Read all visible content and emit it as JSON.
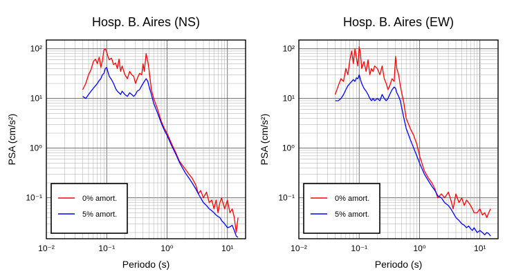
{
  "chart_data": [
    {
      "type": "line",
      "title": "Hosp. B. Aires (NS)",
      "xlabel": "Periodo (s)",
      "ylabel": "PSA (cm/s²)",
      "xscale": "log",
      "yscale": "log",
      "xlim": [
        0.01,
        20
      ],
      "ylim": [
        0.015,
        150
      ],
      "grid": true,
      "legend_placement": "lower-left",
      "xticks": [
        {
          "value": 0.01,
          "label": "10⁻²"
        },
        {
          "value": 0.1,
          "label": "10⁻¹"
        },
        {
          "value": 1,
          "label": "10⁰"
        },
        {
          "value": 10,
          "label": "10¹"
        }
      ],
      "yticks": [
        {
          "value": 0.1,
          "label": "10⁻¹"
        },
        {
          "value": 1,
          "label": "10⁰"
        },
        {
          "value": 10,
          "label": "10¹"
        },
        {
          "value": 100,
          "label": "10²"
        }
      ],
      "series": [
        {
          "name": "0% amort.",
          "color": "#ff0000",
          "x": [
            0.04,
            0.045,
            0.05,
            0.055,
            0.06,
            0.065,
            0.07,
            0.075,
            0.08,
            0.085,
            0.09,
            0.095,
            0.1,
            0.105,
            0.11,
            0.12,
            0.13,
            0.14,
            0.15,
            0.16,
            0.17,
            0.18,
            0.2,
            0.22,
            0.24,
            0.26,
            0.28,
            0.3,
            0.32,
            0.35,
            0.38,
            0.4,
            0.42,
            0.45,
            0.48,
            0.5,
            0.55,
            0.6,
            0.7,
            0.8,
            0.9,
            1.0,
            1.2,
            1.4,
            1.6,
            1.8,
            2.0,
            2.3,
            2.6,
            3.0,
            3.3,
            3.6,
            4.0,
            4.5,
            5.0,
            5.5,
            6.0,
            6.5,
            7.0,
            7.5,
            8.0,
            9.0,
            10.0,
            11.0,
            12.0,
            13.0,
            14.0,
            15.0
          ],
          "y": [
            15,
            20,
            30,
            38,
            55,
            62,
            50,
            68,
            42,
            58,
            95,
            100,
            85,
            70,
            60,
            65,
            48,
            52,
            40,
            62,
            35,
            45,
            30,
            25,
            35,
            30,
            28,
            20,
            25,
            32,
            30,
            50,
            35,
            80,
            55,
            40,
            15,
            10,
            6,
            3.5,
            2.5,
            2,
            1.2,
            0.8,
            0.55,
            0.45,
            0.38,
            0.3,
            0.25,
            0.18,
            0.12,
            0.14,
            0.1,
            0.13,
            0.08,
            0.09,
            0.06,
            0.09,
            0.05,
            0.08,
            0.1,
            0.06,
            0.09,
            0.05,
            0.06,
            0.04,
            0.02,
            0.04
          ]
        },
        {
          "name": "5% amort.",
          "color": "#0000ff",
          "x": [
            0.04,
            0.045,
            0.05,
            0.055,
            0.06,
            0.065,
            0.07,
            0.075,
            0.08,
            0.085,
            0.09,
            0.095,
            0.1,
            0.105,
            0.11,
            0.12,
            0.13,
            0.14,
            0.15,
            0.16,
            0.17,
            0.18,
            0.2,
            0.22,
            0.24,
            0.26,
            0.28,
            0.3,
            0.32,
            0.35,
            0.38,
            0.4,
            0.42,
            0.45,
            0.48,
            0.5,
            0.55,
            0.6,
            0.7,
            0.8,
            0.9,
            1.0,
            1.2,
            1.4,
            1.6,
            1.8,
            2.0,
            2.3,
            2.6,
            3.0,
            3.3,
            3.6,
            4.0,
            4.5,
            5.0,
            5.5,
            6.0,
            6.5,
            7.0,
            7.5,
            8.0,
            9.0,
            10.0,
            11.0,
            12.0,
            13.0,
            14.0,
            15.0
          ],
          "y": [
            11,
            10,
            12,
            14,
            16,
            18,
            20,
            23,
            25,
            30,
            32,
            40,
            42,
            34,
            28,
            24,
            20,
            16,
            14,
            13,
            12,
            14,
            12,
            11,
            13,
            12,
            11,
            12,
            14,
            15,
            18,
            20,
            22,
            25,
            22,
            18,
            12,
            8,
            5,
            3.2,
            2.3,
            1.8,
            1.1,
            0.75,
            0.52,
            0.4,
            0.32,
            0.25,
            0.2,
            0.15,
            0.12,
            0.1,
            0.08,
            0.07,
            0.06,
            0.055,
            0.05,
            0.045,
            0.042,
            0.04,
            0.035,
            0.03,
            0.025,
            0.026,
            0.028,
            0.022,
            0.017,
            0.016
          ]
        }
      ]
    },
    {
      "type": "line",
      "title": "Hosp. B. Aires (EW)",
      "xlabel": "Periodo (s)",
      "ylabel": "PSA (cm/s²)",
      "xscale": "log",
      "yscale": "log",
      "xlim": [
        0.01,
        20
      ],
      "ylim": [
        0.015,
        150
      ],
      "grid": true,
      "legend_placement": "lower-left",
      "xticks": [
        {
          "value": 0.01,
          "label": "10⁻²"
        },
        {
          "value": 0.1,
          "label": "10⁻¹"
        },
        {
          "value": 1,
          "label": "10⁰"
        },
        {
          "value": 10,
          "label": "10¹"
        }
      ],
      "yticks": [
        {
          "value": 0.1,
          "label": "10⁻¹"
        },
        {
          "value": 1,
          "label": "10⁰"
        },
        {
          "value": 10,
          "label": "10¹"
        },
        {
          "value": 100,
          "label": "10²"
        }
      ],
      "series": [
        {
          "name": "0% amort.",
          "color": "#ff0000",
          "x": [
            0.04,
            0.045,
            0.05,
            0.055,
            0.06,
            0.065,
            0.07,
            0.075,
            0.08,
            0.085,
            0.09,
            0.095,
            0.1,
            0.105,
            0.11,
            0.12,
            0.13,
            0.14,
            0.15,
            0.16,
            0.17,
            0.18,
            0.2,
            0.22,
            0.24,
            0.26,
            0.28,
            0.3,
            0.32,
            0.35,
            0.38,
            0.4,
            0.42,
            0.45,
            0.48,
            0.5,
            0.55,
            0.6,
            0.7,
            0.8,
            0.9,
            1.0,
            1.2,
            1.4,
            1.6,
            1.8,
            2.0,
            2.3,
            2.6,
            3.0,
            3.3,
            3.6,
            4.0,
            4.5,
            5.0,
            5.5,
            6.0,
            6.5,
            7.0,
            7.5,
            8.0,
            9.0,
            10.0,
            11.0,
            12.0,
            13.0,
            14.0,
            15.0
          ],
          "y": [
            12,
            18,
            25,
            22,
            40,
            30,
            60,
            90,
            50,
            100,
            65,
            45,
            110,
            80,
            40,
            55,
            35,
            60,
            30,
            40,
            35,
            45,
            40,
            30,
            45,
            25,
            20,
            15,
            18,
            25,
            22,
            70,
            40,
            30,
            18,
            14,
            8,
            4,
            2.5,
            1.8,
            1.2,
            0.7,
            0.35,
            0.25,
            0.2,
            0.15,
            0.1,
            0.12,
            0.1,
            0.13,
            0.09,
            0.06,
            0.12,
            0.08,
            0.1,
            0.07,
            0.09,
            0.08,
            0.07,
            0.06,
            0.05,
            0.05,
            0.06,
            0.045,
            0.05,
            0.04,
            0.05,
            0.06
          ]
        },
        {
          "name": "5% amort.",
          "color": "#0000ff",
          "x": [
            0.04,
            0.045,
            0.05,
            0.055,
            0.06,
            0.065,
            0.07,
            0.075,
            0.08,
            0.085,
            0.09,
            0.095,
            0.1,
            0.105,
            0.11,
            0.12,
            0.13,
            0.14,
            0.15,
            0.16,
            0.17,
            0.18,
            0.2,
            0.22,
            0.24,
            0.26,
            0.28,
            0.3,
            0.32,
            0.35,
            0.38,
            0.4,
            0.42,
            0.45,
            0.48,
            0.5,
            0.55,
            0.6,
            0.7,
            0.8,
            0.9,
            1.0,
            1.2,
            1.4,
            1.6,
            1.8,
            2.0,
            2.3,
            2.6,
            3.0,
            3.3,
            3.6,
            4.0,
            4.5,
            5.0,
            5.5,
            6.0,
            6.5,
            7.0,
            7.5,
            8.0,
            9.0,
            10.0,
            11.0,
            12.0,
            13.0,
            14.0,
            15.0
          ],
          "y": [
            9,
            9,
            10,
            12,
            15,
            18,
            20,
            22,
            24,
            22,
            26,
            25,
            30,
            24,
            20,
            16,
            14,
            12,
            10,
            9,
            10,
            9,
            10,
            9,
            12,
            10,
            9,
            10,
            12,
            15,
            17,
            16,
            13,
            11,
            9,
            7,
            4,
            2.5,
            1.5,
            1.0,
            0.7,
            0.5,
            0.3,
            0.22,
            0.17,
            0.14,
            0.11,
            0.1,
            0.08,
            0.07,
            0.06,
            0.05,
            0.04,
            0.035,
            0.03,
            0.028,
            0.025,
            0.027,
            0.024,
            0.022,
            0.025,
            0.02,
            0.022,
            0.02,
            0.018,
            0.02,
            0.019,
            0.017
          ]
        }
      ]
    }
  ]
}
